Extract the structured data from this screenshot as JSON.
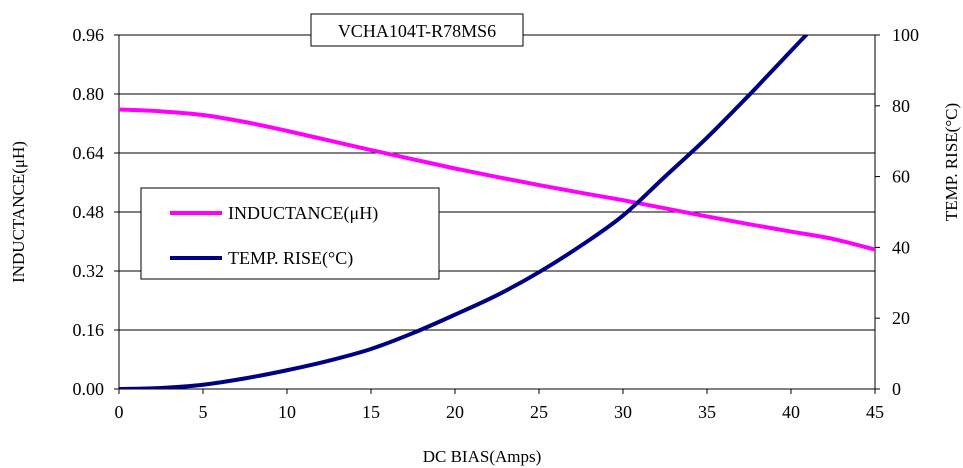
{
  "chart_data": {
    "type": "line",
    "title": "VCHA104T-R78MS6",
    "xlabel": "DC BIAS(Amps)",
    "ylabel_left": "INDUCTANCE(μH)",
    "ylabel_right": "TEMP. RISE(°C)",
    "xlim": [
      0,
      45
    ],
    "ylim_left": [
      0,
      0.96
    ],
    "ylim_right": [
      0,
      100
    ],
    "x_ticks": [
      "0",
      "5",
      "10",
      "15",
      "20",
      "25",
      "30",
      "35",
      "40",
      "45"
    ],
    "y_left_ticks": [
      "0.00",
      "0.16",
      "0.32",
      "0.48",
      "0.64",
      "0.80",
      "0.96"
    ],
    "y_right_ticks": [
      "0",
      "20",
      "40",
      "60",
      "80",
      "100"
    ],
    "grid": "horizontal",
    "legend_placement": "center-left",
    "series": [
      {
        "name": "INDUCTANCE(μH)",
        "axis": "left",
        "color": "#ff00ff",
        "x": [
          0,
          2.5,
          5,
          7.5,
          10,
          12.5,
          15,
          17.5,
          20,
          22.5,
          25,
          27.5,
          30,
          32.5,
          35,
          37.5,
          40,
          42.5,
          45
        ],
        "y": [
          0.758,
          0.753,
          0.743,
          0.724,
          0.7,
          0.674,
          0.648,
          0.623,
          0.598,
          0.575,
          0.553,
          0.532,
          0.512,
          0.49,
          0.468,
          0.447,
          0.427,
          0.407,
          0.378
        ]
      },
      {
        "name": "TEMP. RISE(°C)",
        "axis": "right",
        "color": "#000080",
        "x": [
          0,
          2.5,
          5,
          7.5,
          10,
          12.5,
          15,
          17.5,
          20,
          22.5,
          25,
          27.5,
          30,
          32.5,
          35,
          37.5,
          38.5,
          40,
          41
        ],
        "y": [
          0,
          0.3,
          1.2,
          3,
          5.3,
          8,
          11.3,
          15.8,
          21,
          26.5,
          33,
          40.5,
          49,
          60,
          71,
          83,
          88,
          95.5,
          100.5
        ]
      }
    ]
  }
}
